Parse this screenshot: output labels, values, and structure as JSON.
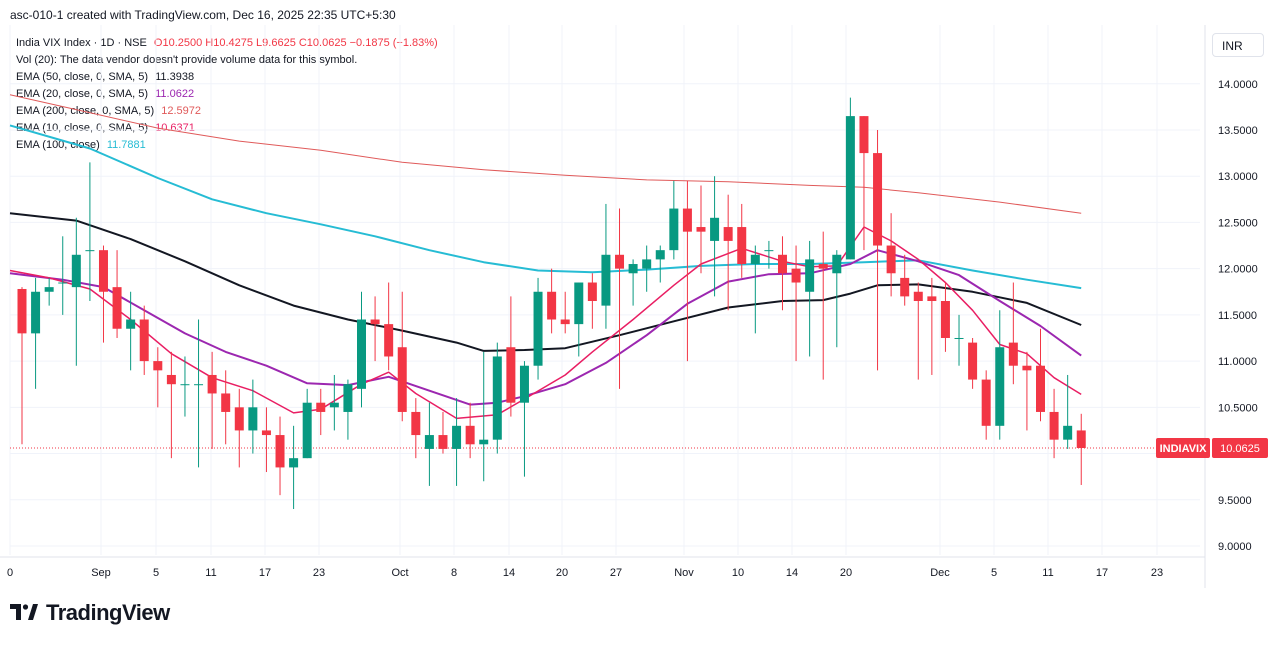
{
  "header": {
    "created_text": "asc-010-1 created with TradingView.com, Dec 16, 2025 22:35 UTC+5:30"
  },
  "legend": {
    "symbol_line": "India VIX Index · 1D · NSE",
    "ohlc": "O10.2500 H10.4275 L9.6625 C10.0625 −0.1875 (−1.83%)",
    "volume_note": "Vol (20): The data vendor doesn't provide volume data for this symbol.",
    "indicators": [
      {
        "label": "EMA (50, close, 0, SMA, 5)",
        "value": "11.3938",
        "color": "#131722"
      },
      {
        "label": "EMA (20, close, 0, SMA, 5)",
        "value": "11.0622",
        "color": "#9c27b0"
      },
      {
        "label": "EMA (200, close, 0, SMA, 5)",
        "value": "12.5972",
        "color": "#e05a5a"
      },
      {
        "label": "EMA (10, close, 0, SMA, 5)",
        "value": "10.6371",
        "color": "#e91e63"
      },
      {
        "label": "EMA (100, close)",
        "value": "11.7881",
        "color": "#26bcd4"
      }
    ]
  },
  "currency_button": "INR",
  "price_tag": {
    "symbol": "INDIAVIX",
    "value": "10.0625"
  },
  "brand": "TradingView",
  "colors": {
    "up": "#089981",
    "down": "#f23645",
    "grid": "#f0f3fa",
    "axis_text": "#131722"
  },
  "chart_data": {
    "type": "candlestick",
    "ylim": [
      8.9,
      14.3
    ],
    "y_ticks": [
      "14.0000",
      "13.5000",
      "13.0000",
      "12.5000",
      "12.0000",
      "11.5000",
      "11.0000",
      "10.5000",
      "10.0000",
      "9.5000",
      "9.0000"
    ],
    "x_ticks": [
      "0",
      "Sep",
      "5",
      "11",
      "17",
      "23",
      "Oct",
      "8",
      "14",
      "20",
      "27",
      "Nov",
      "10",
      "14",
      "20",
      "Dec",
      "5",
      "11",
      "17",
      "23"
    ],
    "candles": [
      [
        11.78,
        11.8,
        10.1,
        11.3
      ],
      [
        11.3,
        11.9,
        10.7,
        11.75
      ],
      [
        11.75,
        11.9,
        11.6,
        11.8
      ],
      [
        11.85,
        12.35,
        11.5,
        11.85
      ],
      [
        11.8,
        12.55,
        10.95,
        12.15
      ],
      [
        12.2,
        13.15,
        11.65,
        12.2
      ],
      [
        12.2,
        12.25,
        11.2,
        11.75
      ],
      [
        11.8,
        12.2,
        11.25,
        11.35
      ],
      [
        11.35,
        11.75,
        10.9,
        11.45
      ],
      [
        11.45,
        11.6,
        10.85,
        11.0
      ],
      [
        11.0,
        11.15,
        10.5,
        10.9
      ],
      [
        10.85,
        11.1,
        9.95,
        10.75
      ],
      [
        10.75,
        11.05,
        10.4,
        10.75
      ],
      [
        10.75,
        11.45,
        9.85,
        10.75
      ],
      [
        10.85,
        11.1,
        10.05,
        10.65
      ],
      [
        10.65,
        10.9,
        10.1,
        10.45
      ],
      [
        10.5,
        10.7,
        9.85,
        10.25
      ],
      [
        10.25,
        10.8,
        10.0,
        10.5
      ],
      [
        10.25,
        10.5,
        9.8,
        10.2
      ],
      [
        10.2,
        10.4,
        9.55,
        9.85
      ],
      [
        9.85,
        10.3,
        9.4,
        9.95
      ],
      [
        9.95,
        10.7,
        9.95,
        10.55
      ],
      [
        10.55,
        10.7,
        10.2,
        10.45
      ],
      [
        10.5,
        10.85,
        10.25,
        10.55
      ],
      [
        10.45,
        10.8,
        10.15,
        10.75
      ],
      [
        10.7,
        11.75,
        10.5,
        11.45
      ],
      [
        11.45,
        11.7,
        11.0,
        11.4
      ],
      [
        11.4,
        11.85,
        10.9,
        11.05
      ],
      [
        11.15,
        11.75,
        10.35,
        10.45
      ],
      [
        10.45,
        10.6,
        9.95,
        10.2
      ],
      [
        10.05,
        10.55,
        9.65,
        10.2
      ],
      [
        10.2,
        10.45,
        10.0,
        10.05
      ],
      [
        10.05,
        10.6,
        9.65,
        10.3
      ],
      [
        10.3,
        10.55,
        9.95,
        10.1
      ],
      [
        10.1,
        11.1,
        9.7,
        10.15
      ],
      [
        10.15,
        11.2,
        10.0,
        11.05
      ],
      [
        11.15,
        11.7,
        10.4,
        10.55
      ],
      [
        10.55,
        11.0,
        9.75,
        10.95
      ],
      [
        10.95,
        11.9,
        10.8,
        11.75
      ],
      [
        11.75,
        12.0,
        11.3,
        11.45
      ],
      [
        11.45,
        11.75,
        11.3,
        11.4
      ],
      [
        11.4,
        11.85,
        11.05,
        11.85
      ],
      [
        11.85,
        11.95,
        11.35,
        11.65
      ],
      [
        11.6,
        12.7,
        11.35,
        12.15
      ],
      [
        12.15,
        12.65,
        10.7,
        12.0
      ],
      [
        11.95,
        12.1,
        11.6,
        12.05
      ],
      [
        12.0,
        12.25,
        11.75,
        12.1
      ],
      [
        12.1,
        12.25,
        11.85,
        12.2
      ],
      [
        12.2,
        12.95,
        12.1,
        12.65
      ],
      [
        12.65,
        12.95,
        11.0,
        12.4
      ],
      [
        12.45,
        12.9,
        11.95,
        12.4
      ],
      [
        12.3,
        13.0,
        11.7,
        12.55
      ],
      [
        12.45,
        12.8,
        11.55,
        12.3
      ],
      [
        12.45,
        12.7,
        11.9,
        12.05
      ],
      [
        12.05,
        12.25,
        11.3,
        12.15
      ],
      [
        12.2,
        12.3,
        12.0,
        12.2
      ],
      [
        12.15,
        12.35,
        11.55,
        11.95
      ],
      [
        12.0,
        12.25,
        11.0,
        11.85
      ],
      [
        11.75,
        12.3,
        11.05,
        12.1
      ],
      [
        12.05,
        12.4,
        10.8,
        12.0
      ],
      [
        11.95,
        12.2,
        11.15,
        12.15
      ],
      [
        12.1,
        13.85,
        12.1,
        13.65
      ],
      [
        13.65,
        13.65,
        12.2,
        13.25
      ],
      [
        13.25,
        13.5,
        10.9,
        12.25
      ],
      [
        12.25,
        12.6,
        11.7,
        11.95
      ],
      [
        11.9,
        12.15,
        11.6,
        11.7
      ],
      [
        11.75,
        11.85,
        10.8,
        11.65
      ],
      [
        11.7,
        11.9,
        10.85,
        11.65
      ],
      [
        11.65,
        11.85,
        11.1,
        11.25
      ],
      [
        11.25,
        11.5,
        10.95,
        11.25
      ],
      [
        11.2,
        11.25,
        10.7,
        10.8
      ],
      [
        10.8,
        10.9,
        10.15,
        10.3
      ],
      [
        10.3,
        11.55,
        10.15,
        11.15
      ],
      [
        11.2,
        11.85,
        10.75,
        10.95
      ],
      [
        10.95,
        11.1,
        10.25,
        10.9
      ],
      [
        10.95,
        11.35,
        10.35,
        10.45
      ],
      [
        10.45,
        10.7,
        9.95,
        10.15
      ],
      [
        10.15,
        10.85,
        10.05,
        10.3
      ],
      [
        10.25,
        10.43,
        9.66,
        10.06
      ]
    ],
    "ema_200": [
      [
        0,
        13.88
      ],
      [
        4,
        13.72
      ],
      [
        10,
        13.52
      ],
      [
        16,
        13.38
      ],
      [
        22,
        13.28
      ],
      [
        28,
        13.15
      ],
      [
        34,
        13.07
      ],
      [
        40,
        13.01
      ],
      [
        46,
        12.96
      ],
      [
        52,
        12.94
      ],
      [
        58,
        12.9
      ],
      [
        62,
        12.88
      ],
      [
        66,
        12.82
      ],
      [
        72,
        12.72
      ],
      [
        78,
        12.6
      ]
    ],
    "ema_100": [
      [
        0,
        13.55
      ],
      [
        5,
        13.3
      ],
      [
        10,
        12.98
      ],
      [
        14,
        12.75
      ],
      [
        18,
        12.6
      ],
      [
        22,
        12.48
      ],
      [
        26,
        12.35
      ],
      [
        30,
        12.2
      ],
      [
        34,
        12.07
      ],
      [
        38,
        11.98
      ],
      [
        42,
        11.96
      ],
      [
        46,
        11.99
      ],
      [
        50,
        12.03
      ],
      [
        54,
        12.05
      ],
      [
        58,
        12.05
      ],
      [
        62,
        12.07
      ],
      [
        66,
        12.09
      ],
      [
        70,
        11.98
      ],
      [
        74,
        11.88
      ],
      [
        78,
        11.79
      ]
    ],
    "ema_50": [
      [
        0,
        12.6
      ],
      [
        4,
        12.52
      ],
      [
        8,
        12.32
      ],
      [
        12,
        12.08
      ],
      [
        16,
        11.82
      ],
      [
        20,
        11.6
      ],
      [
        24,
        11.45
      ],
      [
        28,
        11.33
      ],
      [
        32,
        11.2
      ],
      [
        34,
        11.11
      ],
      [
        37,
        11.12
      ],
      [
        40,
        11.14
      ],
      [
        44,
        11.28
      ],
      [
        48,
        11.43
      ],
      [
        52,
        11.58
      ],
      [
        56,
        11.65
      ],
      [
        59,
        11.66
      ],
      [
        61,
        11.73
      ],
      [
        63,
        11.82
      ],
      [
        66,
        11.83
      ],
      [
        70,
        11.75
      ],
      [
        74,
        11.63
      ],
      [
        78,
        11.39
      ]
    ],
    "ema_20": [
      [
        0,
        11.95
      ],
      [
        3,
        11.88
      ],
      [
        6,
        11.8
      ],
      [
        9,
        11.55
      ],
      [
        12,
        11.3
      ],
      [
        15,
        11.1
      ],
      [
        18,
        10.95
      ],
      [
        21,
        10.76
      ],
      [
        24,
        10.74
      ],
      [
        27,
        10.83
      ],
      [
        30,
        10.68
      ],
      [
        33,
        10.53
      ],
      [
        35,
        10.55
      ],
      [
        37,
        10.62
      ],
      [
        40,
        10.75
      ],
      [
        43,
        10.98
      ],
      [
        46,
        11.28
      ],
      [
        49,
        11.62
      ],
      [
        52,
        11.86
      ],
      [
        55,
        11.94
      ],
      [
        58,
        11.95
      ],
      [
        61,
        12.05
      ],
      [
        63,
        12.2
      ],
      [
        66,
        12.08
      ],
      [
        69,
        11.93
      ],
      [
        72,
        11.65
      ],
      [
        75,
        11.38
      ],
      [
        78,
        11.06
      ]
    ],
    "ema_10": [
      [
        0,
        11.98
      ],
      [
        2,
        11.9
      ],
      [
        5,
        11.78
      ],
      [
        8,
        11.45
      ],
      [
        11,
        11.08
      ],
      [
        14,
        10.82
      ],
      [
        17,
        10.68
      ],
      [
        20,
        10.44
      ],
      [
        22,
        10.48
      ],
      [
        25,
        10.75
      ],
      [
        27,
        10.88
      ],
      [
        29,
        10.65
      ],
      [
        32,
        10.38
      ],
      [
        35,
        10.42
      ],
      [
        37,
        10.59
      ],
      [
        40,
        10.85
      ],
      [
        42,
        11.1
      ],
      [
        45,
        11.45
      ],
      [
        48,
        11.82
      ],
      [
        50,
        12.05
      ],
      [
        53,
        12.22
      ],
      [
        56,
        12.08
      ],
      [
        58,
        12.02
      ],
      [
        60,
        12.03
      ],
      [
        62,
        12.45
      ],
      [
        64,
        12.3
      ],
      [
        66,
        12.1
      ],
      [
        68,
        11.85
      ],
      [
        70,
        11.55
      ],
      [
        72,
        11.18
      ],
      [
        74,
        11.08
      ],
      [
        76,
        10.82
      ],
      [
        78,
        10.64
      ]
    ]
  }
}
